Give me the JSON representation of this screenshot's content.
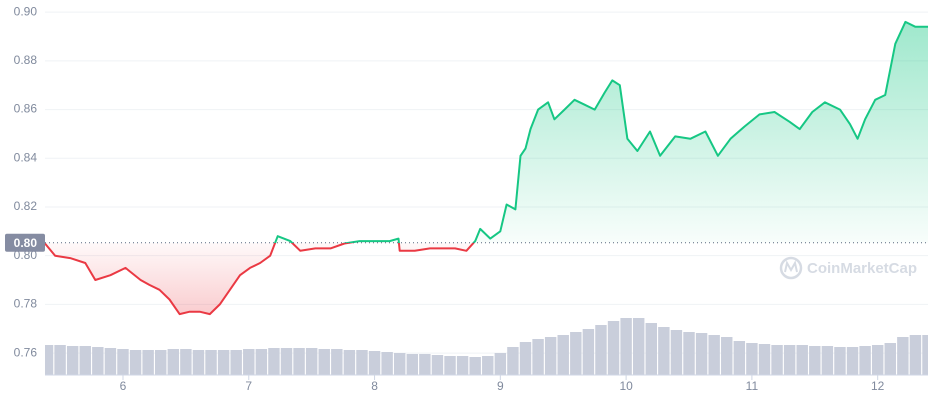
{
  "chart_data": {
    "type": "line",
    "x": [
      5.38,
      5.46,
      5.58,
      5.7,
      5.78,
      5.9,
      6.02,
      6.14,
      6.21,
      6.29,
      6.37,
      6.45,
      6.53,
      6.61,
      6.69,
      6.77,
      6.85,
      6.93,
      7.01,
      7.09,
      7.17,
      7.23,
      7.33,
      7.41,
      7.53,
      7.65,
      7.76,
      7.88,
      8.0,
      8.12,
      8.19,
      8.2,
      8.32,
      8.44,
      8.56,
      8.64,
      8.73,
      8.8,
      8.84,
      8.92,
      9.0,
      9.05,
      9.12,
      9.16,
      9.2,
      9.24,
      9.3,
      9.38,
      9.43,
      9.51,
      9.59,
      9.67,
      9.75,
      9.83,
      9.89,
      9.95,
      10.01,
      10.09,
      10.19,
      10.27,
      10.39,
      10.51,
      10.63,
      10.73,
      10.83,
      10.94,
      11.06,
      11.18,
      11.3,
      11.38,
      11.48,
      11.58,
      11.7,
      11.78,
      11.84,
      11.9,
      11.98,
      12.06,
      12.14,
      12.22,
      12.3,
      12.4
    ],
    "values": [
      0.805,
      0.8,
      0.799,
      0.797,
      0.79,
      0.792,
      0.795,
      0.79,
      0.788,
      0.786,
      0.782,
      0.776,
      0.777,
      0.777,
      0.776,
      0.78,
      0.786,
      0.792,
      0.795,
      0.797,
      0.8,
      0.808,
      0.806,
      0.802,
      0.803,
      0.803,
      0.805,
      0.806,
      0.806,
      0.806,
      0.807,
      0.802,
      0.802,
      0.803,
      0.803,
      0.803,
      0.802,
      0.806,
      0.811,
      0.807,
      0.81,
      0.821,
      0.819,
      0.841,
      0.844,
      0.852,
      0.86,
      0.863,
      0.856,
      0.86,
      0.864,
      0.862,
      0.86,
      0.867,
      0.872,
      0.87,
      0.848,
      0.843,
      0.851,
      0.841,
      0.849,
      0.848,
      0.851,
      0.841,
      0.848,
      0.853,
      0.858,
      0.859,
      0.855,
      0.852,
      0.859,
      0.863,
      0.86,
      0.854,
      0.848,
      0.856,
      0.864,
      0.866,
      0.887,
      0.896,
      0.894,
      0.894
    ],
    "up_color": "#16c784",
    "down_color": "#ea3943",
    "baseline": {
      "value": 0.8053,
      "label": "0.80"
    },
    "xlim": [
      5.38,
      12.4
    ],
    "ylim": [
      0.751,
      0.905
    ],
    "xticks": [
      6,
      7,
      8,
      9,
      10,
      11,
      12
    ],
    "yticks": [
      {
        "value": 0.76,
        "label": "0.76"
      },
      {
        "value": 0.78,
        "label": "0.78"
      },
      {
        "value": 0.8,
        "label": "0.80"
      },
      {
        "value": 0.82,
        "label": "0.82"
      },
      {
        "value": 0.84,
        "label": "0.84"
      },
      {
        "value": 0.86,
        "label": "0.86"
      },
      {
        "value": 0.88,
        "label": "0.88"
      },
      {
        "value": 0.9,
        "label": "0.90"
      }
    ],
    "grid": true,
    "volume": {
      "color": "#c9cedb",
      "ylim": [
        0,
        60
      ],
      "x": [
        5.4,
        5.5,
        5.6,
        5.7,
        5.8,
        5.9,
        6.0,
        6.1,
        6.2,
        6.3,
        6.4,
        6.5,
        6.6,
        6.7,
        6.8,
        6.9,
        7.0,
        7.1,
        7.2,
        7.3,
        7.4,
        7.5,
        7.6,
        7.7,
        7.8,
        7.9,
        8.0,
        8.1,
        8.2,
        8.3,
        8.4,
        8.5,
        8.6,
        8.7,
        8.8,
        8.9,
        9.0,
        9.1,
        9.2,
        9.3,
        9.4,
        9.5,
        9.6,
        9.7,
        9.8,
        9.9,
        10.0,
        10.1,
        10.2,
        10.3,
        10.4,
        10.5,
        10.6,
        10.7,
        10.8,
        10.9,
        11.0,
        11.1,
        11.2,
        11.3,
        11.4,
        11.5,
        11.6,
        11.7,
        11.8,
        11.9,
        12.0,
        12.1,
        12.2,
        12.3,
        12.4
      ],
      "values": [
        30,
        30,
        29,
        29,
        28,
        27,
        26,
        25,
        25,
        25,
        26,
        26,
        25,
        25,
        25,
        25,
        26,
        26,
        27,
        27,
        27,
        27,
        26,
        26,
        25,
        25,
        24,
        23,
        22,
        21,
        21,
        20,
        19,
        19,
        18,
        19,
        22,
        28,
        33,
        36,
        38,
        40,
        43,
        46,
        50,
        54,
        57,
        57,
        52,
        48,
        45,
        43,
        42,
        40,
        38,
        34,
        32,
        31,
        30,
        30,
        30,
        29,
        29,
        28,
        28,
        29,
        30,
        32,
        38,
        40,
        40
      ]
    },
    "watermark": "CoinMarketCap"
  }
}
